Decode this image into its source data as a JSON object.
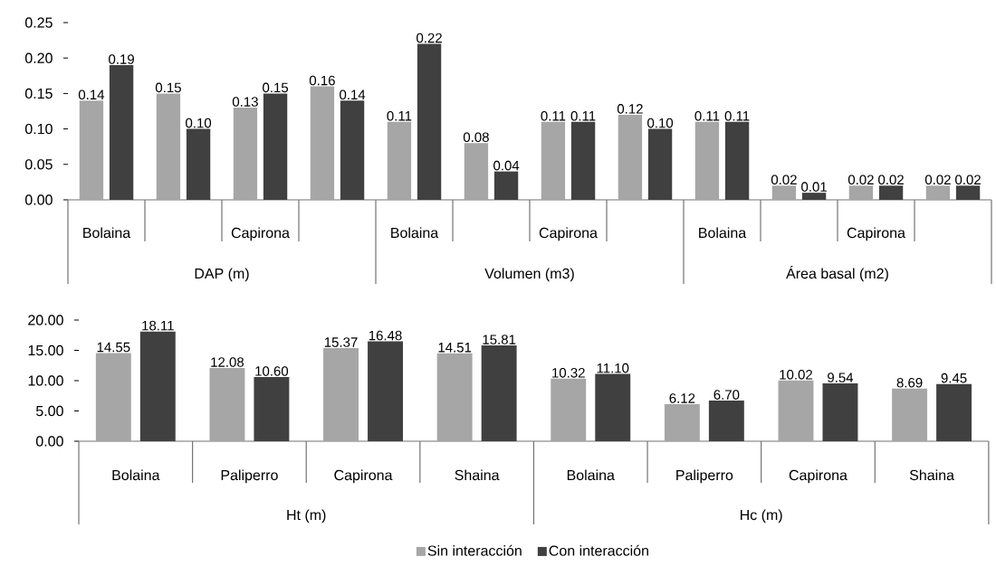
{
  "chart_data": [
    {
      "type": "bar",
      "categories": [
        "Bolaina",
        null,
        "Capirona",
        null,
        "Bolaina",
        null,
        "Capirona",
        null,
        "Bolaina",
        null,
        "Capirona",
        null
      ],
      "annotations": [
        "DAP (m)",
        "Volumen (m3)",
        "Área basal (m2)"
      ],
      "ylim": [
        0,
        0.25
      ],
      "yticks": [
        {
          "value": 0,
          "label": "0.00"
        },
        {
          "value": 0.05,
          "label": "0.05"
        },
        {
          "value": 0.1,
          "label": "0.10"
        },
        {
          "value": 0.15,
          "label": "0.15"
        },
        {
          "value": 0.2,
          "label": "0.20"
        },
        {
          "value": 0.25,
          "label": "0.25"
        }
      ],
      "series": [
        {
          "color": "#a6a6a6",
          "values": [
            0.14,
            0.15,
            0.13,
            0.16,
            0.11,
            0.08,
            0.11,
            0.12,
            0.11,
            0.02,
            0.02,
            0.02
          ],
          "value_labels": [
            "0.14",
            "0.15",
            "0.13",
            "0.16",
            "0.11",
            "0.08",
            "0.11",
            "0.12",
            "0.11",
            "0.02",
            "0.02",
            "0.02"
          ]
        },
        {
          "color": "#404040",
          "values": [
            0.19,
            0.1,
            0.15,
            0.14,
            0.22,
            0.04,
            0.11,
            0.1,
            0.11,
            0.01,
            0.02,
            0.02
          ],
          "value_labels": [
            "0.19",
            "0.10",
            "0.15",
            "0.14",
            "0.22",
            "0.04",
            "0.11",
            "0.10",
            "0.11",
            "0.01",
            "0.02",
            "0.02"
          ]
        }
      ]
    },
    {
      "type": "bar",
      "categories": [
        "Bolaina",
        "Paliperro",
        "Capirona",
        "Shaina",
        "Bolaina",
        "Paliperro",
        "Capirona",
        "Shaina"
      ],
      "annotations": [
        "Ht (m)",
        "Hc (m)"
      ],
      "ylim": [
        0,
        20
      ],
      "yticks": [
        {
          "value": 0,
          "label": "0.00"
        },
        {
          "value": 5,
          "label": "5.00"
        },
        {
          "value": 10,
          "label": "10.00"
        },
        {
          "value": 15,
          "label": "15.00"
        },
        {
          "value": 20,
          "label": "20.00"
        }
      ],
      "legend": "bottom",
      "series": [
        {
          "name": "Sin interacción",
          "color": "#a6a6a6",
          "values": [
            14.55,
            12.08,
            15.37,
            14.51,
            10.32,
            6.12,
            10.02,
            8.69
          ],
          "value_labels": [
            "14.55",
            "12.08",
            "15.37",
            "14.51",
            "10.32",
            "6.12",
            "10.02",
            "8.69"
          ]
        },
        {
          "name": "Con interacción",
          "color": "#404040",
          "values": [
            18.11,
            10.6,
            16.48,
            15.81,
            11.1,
            6.7,
            9.54,
            9.45
          ],
          "value_labels": [
            "18.11",
            "10.60",
            "16.48",
            "15.81",
            "11.10",
            "6.70",
            "9.54",
            "9.45"
          ]
        }
      ]
    }
  ]
}
